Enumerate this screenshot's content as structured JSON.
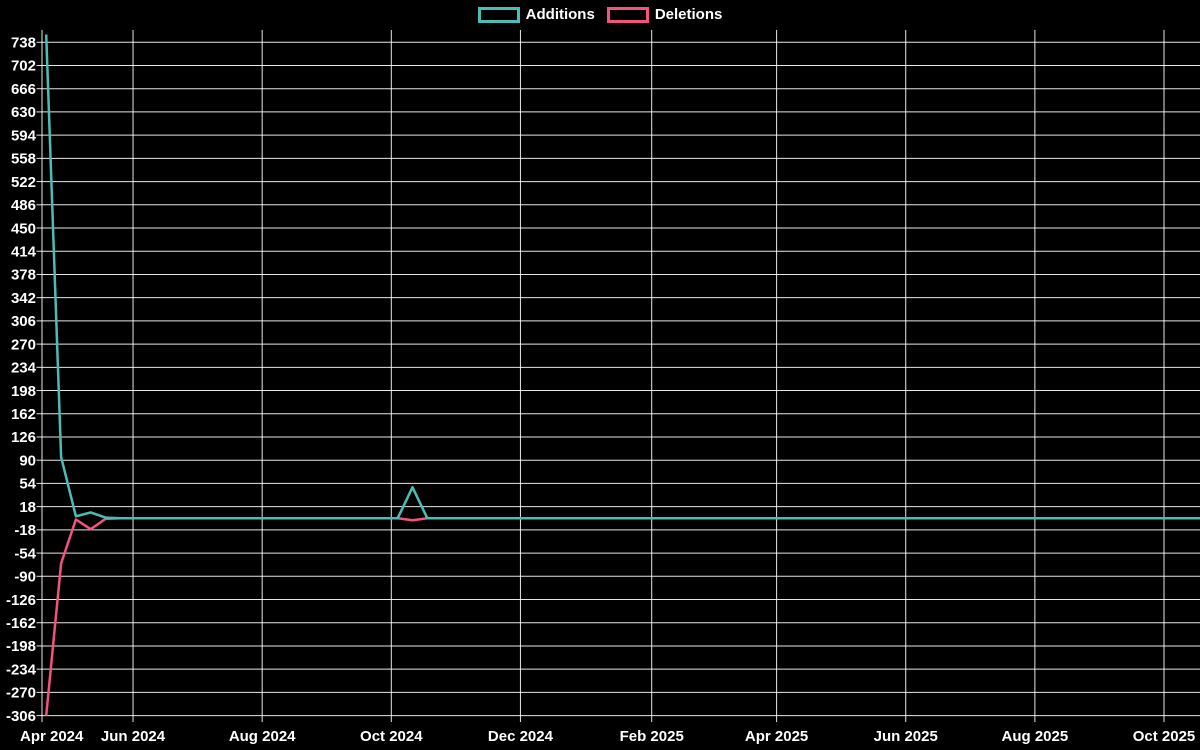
{
  "page": {
    "background_color": "#000000",
    "text_color": "#ffffff",
    "gridline_color": "#ffffff"
  },
  "legend": {
    "position": "top-center",
    "items": [
      {
        "label": "Additions",
        "color": "#4cbcb6"
      },
      {
        "label": "Deletions",
        "color": "#f4537b"
      }
    ]
  },
  "chart_data": {
    "type": "line",
    "title": "",
    "grid": true,
    "legend_position": "top-center",
    "background": "#000000",
    "x_axis": {
      "tick_labels": [
        "Apr 2024",
        "Jun 2024",
        "Aug 2024",
        "Oct 2024",
        "Dec 2024",
        "Feb 2025",
        "Apr 2025",
        "Jun 2025",
        "Aug 2025",
        "Oct 2025"
      ],
      "tick_day_offsets": [
        0,
        43,
        104,
        165,
        226,
        288,
        347,
        408,
        469,
        530
      ],
      "domain_days": [
        0,
        547
      ]
    },
    "y_axis": {
      "tick_values": [
        738,
        702,
        666,
        630,
        594,
        558,
        522,
        486,
        450,
        414,
        378,
        342,
        306,
        270,
        234,
        198,
        162,
        126,
        90,
        54,
        18,
        -18,
        -54,
        -90,
        -126,
        -162,
        -198,
        -234,
        -270,
        -306
      ],
      "ylim": [
        -306,
        757
      ]
    },
    "series": [
      {
        "name": "Additions",
        "color": "#4cbcb6",
        "points_day_value": [
          [
            2,
            750
          ],
          [
            9,
            95
          ],
          [
            16,
            3
          ],
          [
            23,
            9
          ],
          [
            30,
            1
          ],
          [
            37,
            0
          ],
          [
            168,
            0
          ],
          [
            175,
            48
          ],
          [
            182,
            0
          ],
          [
            547,
            0
          ]
        ]
      },
      {
        "name": "Deletions",
        "color": "#f4537b",
        "points_day_value": [
          [
            2,
            -306
          ],
          [
            9,
            -70
          ],
          [
            16,
            -2
          ],
          [
            23,
            -17
          ],
          [
            30,
            -1
          ],
          [
            37,
            0
          ],
          [
            168,
            0
          ],
          [
            175,
            -3
          ],
          [
            182,
            0
          ],
          [
            547,
            0
          ]
        ]
      }
    ]
  }
}
